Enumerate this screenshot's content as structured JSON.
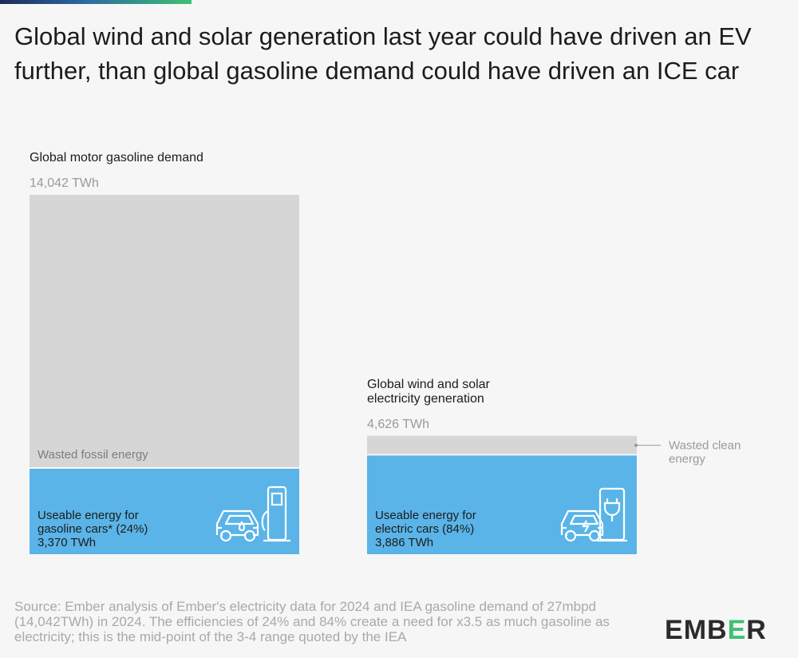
{
  "title": "Global wind and solar generation last year could have driven an EV further, than global gasoline demand could have driven an ICE car",
  "colors": {
    "total": "#d6d6d6",
    "useable": "#5ab4e8",
    "label": "#1c1c1c",
    "muted": "#9a9a9a",
    "logo": "#2b2b2b",
    "logo_accent": "#3fbf73"
  },
  "chart_data": {
    "type": "bar",
    "unit": "TWh",
    "bars": [
      {
        "label": "Global motor gasoline demand",
        "total": 14042,
        "total_text": "14,042 TWh",
        "useable": 3370,
        "wasted_label": "Wasted fossil energy",
        "useable_label_1": "Useable energy for",
        "useable_label_2": "gasoline cars* (24%)",
        "useable_value_text": "3,370 TWh",
        "icon": "gas-pump-car-icon"
      },
      {
        "label": "Global wind and solar electricity generation",
        "total": 4626,
        "total_text": "4,626 TWh",
        "useable": 3886,
        "wasted_label": "Wasted clean energy",
        "useable_label_1": "Useable energy for",
        "useable_label_2": "electric cars (84%)",
        "useable_value_text": "3,886 TWh",
        "icon": "ev-charger-car-icon"
      }
    ]
  },
  "source": "Source: Ember analysis of Ember's electricity data for 2024 and IEA gasoline demand of 27mbpd (14,042TWh) in 2024. The efficiencies of 24% and 84% create a need for x3.5 as much gasoline as electricity; this is the mid-point of the 3-4 range quoted by the IEA",
  "logo_text": "EMBER"
}
